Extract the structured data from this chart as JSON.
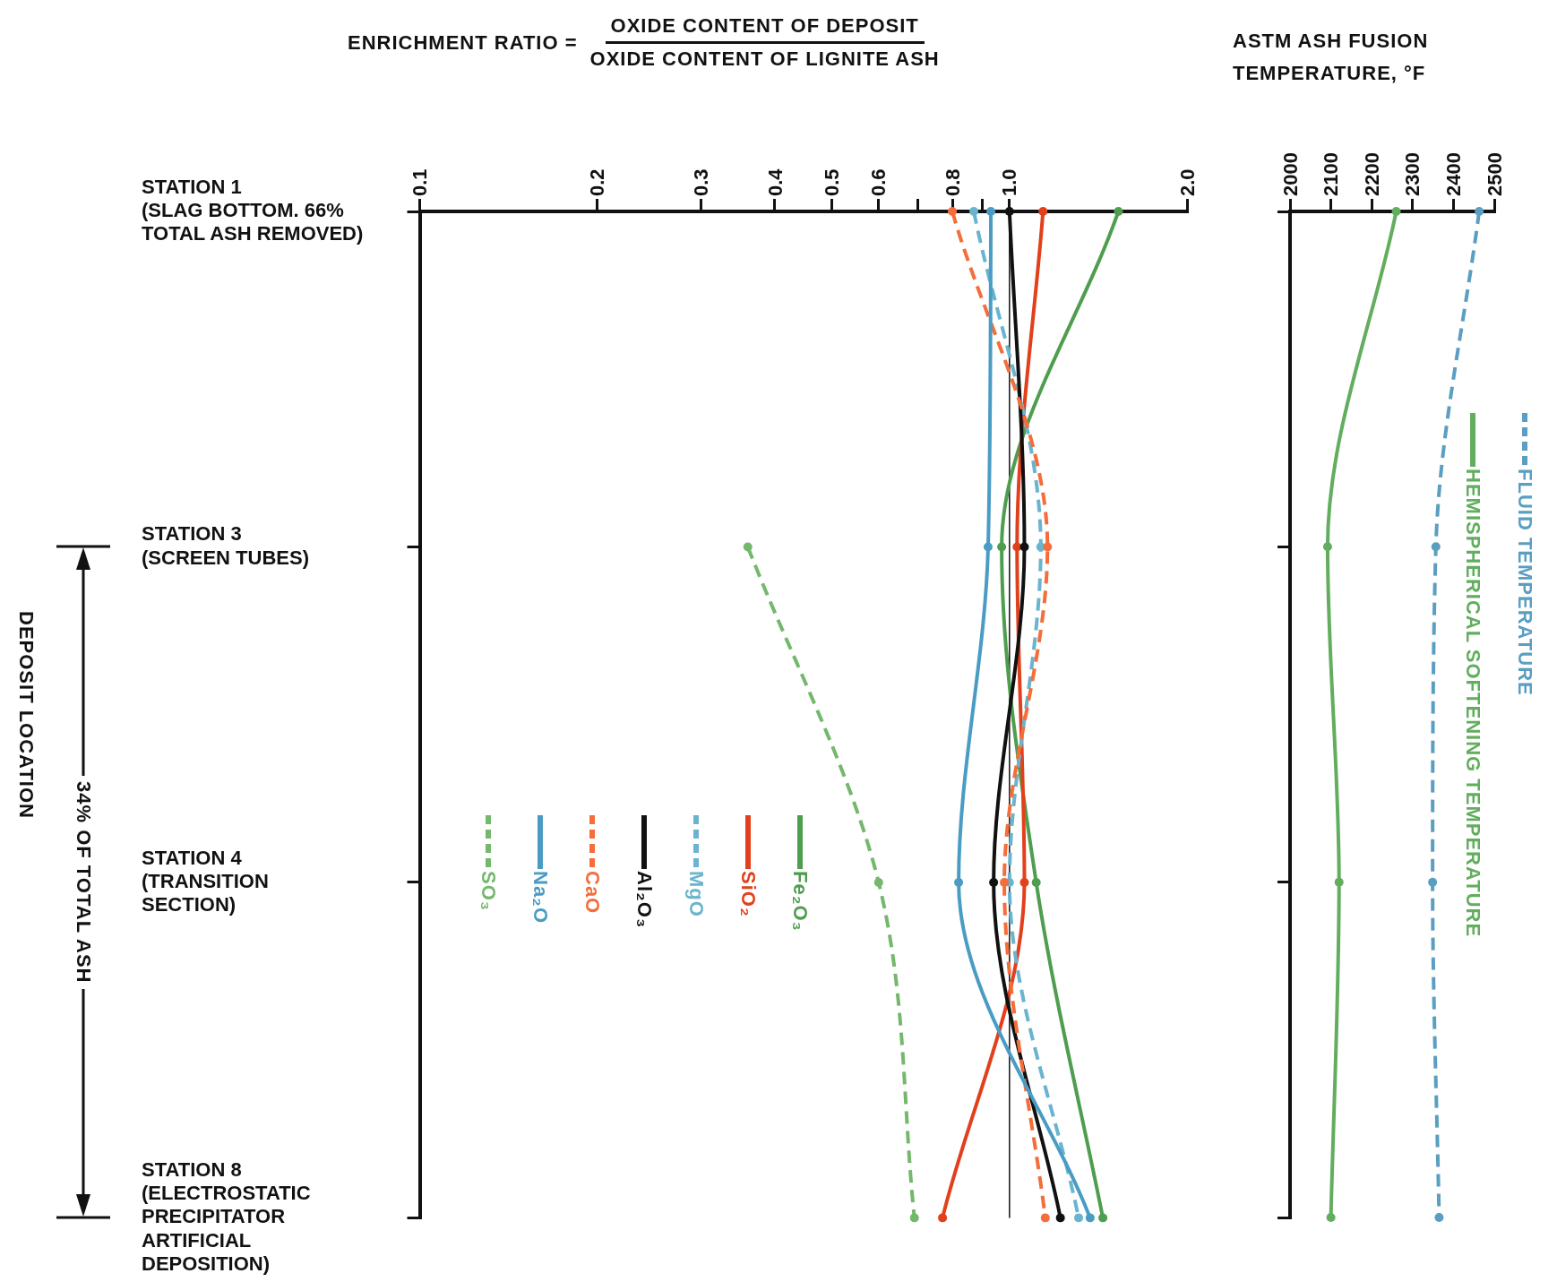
{
  "chart_data": [
    {
      "type": "line",
      "orientation": "horizontal",
      "xlabel": "ENRICHMENT RATIO =",
      "ylabel": "DEPOSIT LOCATION",
      "annotations": [
        "OXIDE CONTENT OF DEPOSIT",
        "OXIDE CONTENT OF LIGNITE ASH",
        "34% OF TOTAL ASH"
      ],
      "categories": [
        "STATION 1 (SLAG BOTTOM. 66% TOTAL ASH REMOVED)",
        "STATION 3 (SCREEN TUBES)",
        "STATION 4 (TRANSITION SECTION)",
        "STATION 8 (ELECTROSTATIC PRECIPITATOR ARTIFICIAL DEPOSITION)"
      ],
      "log": "x",
      "xlim": [
        0.1,
        2.0
      ],
      "xticks": [
        0.1,
        0.2,
        0.3,
        0.4,
        0.5,
        0.6,
        {
          "value": 0.7,
          "label": null
        },
        0.8,
        {
          "value": 0.9,
          "label": null
        },
        {
          "value": 1.0,
          "label": "1.0"
        },
        {
          "value": 2.0,
          "label": "2.0"
        }
      ],
      "marker": "circle",
      "grid": false,
      "legend": "bottom left",
      "ref_lines": [
        {
          "axis": "x",
          "value": 1.0,
          "color": "#111111"
        }
      ],
      "series": [
        {
          "name": "SO₃",
          "color": "#74b86c",
          "line_style": "dashed",
          "values": [
            null,
            0.36,
            0.6,
            0.69
          ]
        },
        {
          "name": "Na₂O",
          "color": "#4a9cc4",
          "line_style": "solid",
          "values": [
            0.93,
            0.92,
            0.82,
            1.37
          ]
        },
        {
          "name": "CaO",
          "color": "#f46d3a",
          "line_style": "dashed",
          "values": [
            0.8,
            1.16,
            0.98,
            1.15
          ]
        },
        {
          "name": "Al₂O₃",
          "color": "#111111",
          "line_style": "solid",
          "values": [
            1.0,
            1.06,
            0.94,
            1.22
          ]
        },
        {
          "name": "MgO",
          "color": "#6ab4cf",
          "line_style": "dashed",
          "values": [
            0.87,
            1.13,
            1.0,
            1.31
          ]
        },
        {
          "name": "SiO₂",
          "color": "#e2401c",
          "line_style": "solid",
          "values": [
            1.14,
            1.03,
            1.06,
            0.77
          ]
        },
        {
          "name": "Fe₂O₃",
          "color": "#4f9e4f",
          "line_style": "solid",
          "values": [
            1.53,
            0.97,
            1.11,
            1.44
          ]
        }
      ]
    },
    {
      "type": "line",
      "orientation": "horizontal",
      "xlabel": "ASTM ASH FUSION TEMPERATURE, °F",
      "categories": [
        null,
        null,
        null,
        null
      ],
      "tick_labels": "x",
      "xlim": [
        2000,
        2500
      ],
      "xticks": [
        2000,
        2100,
        2200,
        2300,
        2400,
        2500
      ],
      "marker": "circle",
      "grid": false,
      "legend": "right",
      "series": [
        {
          "name": "FLUID TEMPERATURE",
          "color": "#5a9ec2",
          "line_style": "dashed",
          "values": [
            2463,
            2357,
            2349,
            2365
          ]
        },
        {
          "name": "HEMISPHERICAL SOFTENING TEMPERATURE",
          "color": "#62ad5e",
          "line_style": "solid",
          "values": [
            2260,
            2092,
            2120,
            2100
          ]
        }
      ]
    }
  ]
}
